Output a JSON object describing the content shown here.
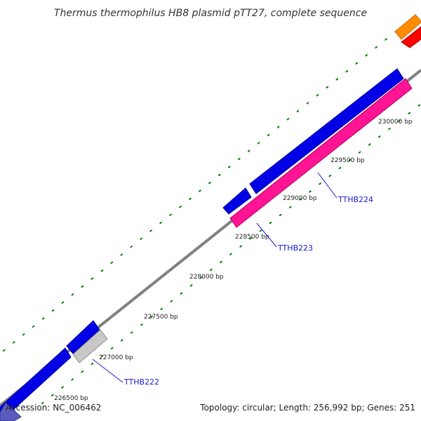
{
  "title": "Thermus thermophilus HB8 plasmid pTT27, complete sequence",
  "footer": {
    "accession": "Accession: NC_006462",
    "summary": "Topology: circular; Length: 256,992 bp; Genes: 251"
  },
  "ticks": [
    {
      "label": "226500 bp"
    },
    {
      "label": "227000 bp"
    },
    {
      "label": "227500 bp"
    },
    {
      "label": "228000 bp"
    },
    {
      "label": "228500 bp"
    },
    {
      "label": "229000 bp"
    },
    {
      "label": "229500 bp"
    },
    {
      "label": "230000 bp"
    }
  ],
  "genes": [
    {
      "label": "TTHB222"
    },
    {
      "label": "TTHB223"
    },
    {
      "label": "TTHB224"
    }
  ],
  "colors": {
    "backbone": "#808080",
    "cds_blue": "#0000e6",
    "gene_pink": "#ff1493",
    "gene_grey": "#c8c8c8",
    "gene_orange": "#ff8c00",
    "gene_red": "#ff0000",
    "tick_green": "#008000",
    "label_blue": "#1a1acc"
  }
}
